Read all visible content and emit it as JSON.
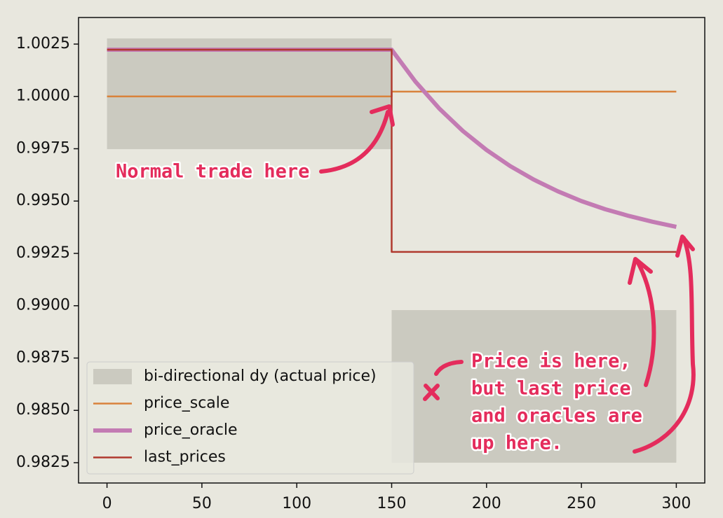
{
  "chart_data": {
    "type": "line",
    "x": [
      0,
      150,
      150,
      162.5,
      175,
      187.5,
      200,
      212.5,
      225,
      237.5,
      250,
      262.5,
      275,
      287.5,
      300
    ],
    "series": [
      {
        "name": "price_scale",
        "color": "#d9823b",
        "width": 2.5,
        "values": [
          1.0,
          1.0,
          1.00023,
          1.00023,
          1.00023,
          1.00023,
          1.00023,
          1.00023,
          1.00023,
          1.00023,
          1.00023,
          1.00023,
          1.00023,
          1.00023,
          1.00023
        ]
      },
      {
        "name": "price_oracle",
        "color": "#c37bb3",
        "width": 6,
        "values": [
          1.00223,
          1.00223,
          1.00223,
          1.00071,
          0.99943,
          0.99835,
          0.99744,
          0.99667,
          0.99602,
          0.99547,
          0.995,
          0.99461,
          0.99429,
          0.99401,
          0.99377
        ]
      },
      {
        "name": "last_prices",
        "color": "#b0392e",
        "width": 2.5,
        "values": [
          1.00223,
          1.00223,
          0.99257,
          0.99257,
          0.99257,
          0.99257,
          0.99257,
          0.99257,
          0.99257,
          0.99257,
          0.99257,
          0.99257,
          0.99257,
          0.99257,
          0.99257
        ]
      }
    ],
    "shaded": {
      "name": "bi-directional dy (actual price)",
      "color": "#cbcac0",
      "regions": [
        {
          "xrange": [
            0,
            150
          ],
          "yrange": [
            0.99748,
            1.00277
          ]
        },
        {
          "xrange": [
            150,
            300
          ],
          "yrange": [
            0.9825,
            0.98979
          ]
        }
      ]
    },
    "xlim": [
      -15,
      315
    ],
    "ylim": [
      0.98153,
      1.00377
    ],
    "xticks": [
      0,
      50,
      100,
      150,
      200,
      250,
      300
    ],
    "yticks": [
      1.0025,
      {
        "value": 1,
        "label": "1.0000"
      },
      0.9975,
      {
        "value": 0.995,
        "label": "0.9950"
      },
      0.9925,
      {
        "value": 0.99,
        "label": "0.9900"
      },
      0.9875,
      {
        "value": 0.985,
        "label": "0.9850"
      },
      0.9825
    ],
    "legend": "lower left",
    "annotations": [
      {
        "lines": [
          "Normal trade here"
        ]
      },
      {
        "lines": [
          "Price is here,",
          "but last price",
          "and oracles are",
          "up here."
        ]
      }
    ]
  }
}
